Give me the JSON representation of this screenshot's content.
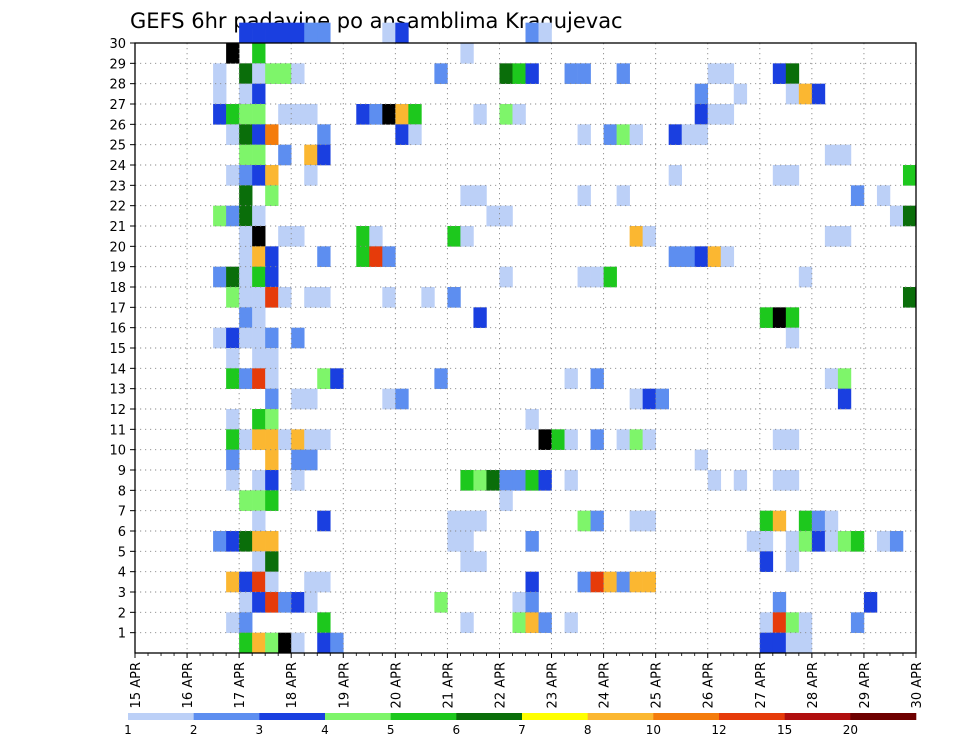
{
  "chart_data": {
    "type": "heatmap",
    "title": "GEFS 6hr padavine po ansamblima Kragujevac",
    "x_start": "15 APR 00Z",
    "x_end": "30 APR 00Z",
    "x_step_hours": 6,
    "x_tick_labels": [
      "15 APR",
      "16 APR",
      "17 APR",
      "18 APR",
      "19 APR",
      "20 APR",
      "21 APR",
      "22 APR",
      "23 APR",
      "24 APR",
      "25 APR",
      "26 APR",
      "27 APR",
      "28 APR",
      "29 APR",
      "30 APR"
    ],
    "y_tick_labels": [
      "1",
      "2",
      "3",
      "4",
      "5",
      "6",
      "7",
      "8",
      "9",
      "10",
      "11",
      "12",
      "13",
      "14",
      "15",
      "16",
      "17",
      "18",
      "19",
      "20",
      "21",
      "22",
      "23",
      "24",
      "25",
      "26",
      "27",
      "28",
      "29",
      "30"
    ],
    "ylim": [
      0,
      30
    ],
    "grid": true,
    "colorbar": {
      "levels": [
        1,
        2,
        3,
        4,
        5,
        6,
        7,
        8,
        10,
        12,
        15,
        20
      ],
      "colors": [
        "#bcd0f7",
        "#5d8ef0",
        "#1a3fe0",
        "#7ef56a",
        "#1dc81d",
        "#0a6e0a",
        "#ffff00",
        "#fbb731",
        "#f47c0c",
        "#e63b0a",
        "#b00e0e",
        "#6e0000"
      ]
    },
    "cells": [
      [
        8,
        30,
        3
      ],
      [
        9,
        30,
        3
      ],
      [
        10,
        30,
        3
      ],
      [
        11,
        30,
        3
      ],
      [
        12,
        30,
        3
      ],
      [
        13,
        30,
        2
      ],
      [
        14,
        30,
        2
      ],
      [
        19,
        30,
        1
      ],
      [
        20,
        30,
        3
      ],
      [
        30,
        30,
        2
      ],
      [
        31,
        30,
        1
      ],
      [
        7,
        29,
        15
      ],
      [
        9,
        29,
        5
      ],
      [
        25,
        29,
        1
      ],
      [
        6,
        28,
        1
      ],
      [
        8,
        28,
        6
      ],
      [
        9,
        28,
        1
      ],
      [
        10,
        28,
        4
      ],
      [
        11,
        28,
        4
      ],
      [
        12,
        28,
        1
      ],
      [
        23,
        28,
        2
      ],
      [
        28,
        28,
        6
      ],
      [
        29,
        28,
        5
      ],
      [
        30,
        28,
        3
      ],
      [
        33,
        28,
        2
      ],
      [
        34,
        28,
        2
      ],
      [
        37,
        28,
        2
      ],
      [
        44,
        28,
        1
      ],
      [
        45,
        28,
        1
      ],
      [
        49,
        28,
        3
      ],
      [
        50,
        28,
        6
      ],
      [
        6,
        27,
        1
      ],
      [
        8,
        27,
        1
      ],
      [
        9,
        27,
        3
      ],
      [
        43,
        27,
        2
      ],
      [
        46,
        27,
        1
      ],
      [
        50,
        27,
        1
      ],
      [
        51,
        27,
        8
      ],
      [
        52,
        27,
        3
      ],
      [
        6,
        26,
        3
      ],
      [
        7,
        26,
        5
      ],
      [
        8,
        26,
        4
      ],
      [
        9,
        26,
        4
      ],
      [
        11,
        26,
        1
      ],
      [
        12,
        26,
        1
      ],
      [
        13,
        26,
        1
      ],
      [
        17,
        26,
        3
      ],
      [
        18,
        26,
        2
      ],
      [
        19,
        26,
        15
      ],
      [
        20,
        26,
        8
      ],
      [
        21,
        26,
        5
      ],
      [
        26,
        26,
        1
      ],
      [
        28,
        26,
        4
      ],
      [
        29,
        26,
        1
      ],
      [
        43,
        26,
        3
      ],
      [
        44,
        26,
        1
      ],
      [
        45,
        26,
        1
      ],
      [
        7,
        25,
        1
      ],
      [
        8,
        25,
        6
      ],
      [
        9,
        25,
        3
      ],
      [
        10,
        25,
        9
      ],
      [
        14,
        25,
        2
      ],
      [
        20,
        25,
        3
      ],
      [
        21,
        25,
        1
      ],
      [
        34,
        25,
        1
      ],
      [
        36,
        25,
        2
      ],
      [
        37,
        25,
        4
      ],
      [
        38,
        25,
        1
      ],
      [
        41,
        25,
        3
      ],
      [
        42,
        25,
        1
      ],
      [
        43,
        25,
        1
      ],
      [
        8,
        24,
        4
      ],
      [
        9,
        24,
        4
      ],
      [
        11,
        24,
        2
      ],
      [
        13,
        24,
        8
      ],
      [
        14,
        24,
        3
      ],
      [
        53,
        24,
        1
      ],
      [
        54,
        24,
        1
      ],
      [
        7,
        23,
        1
      ],
      [
        8,
        23,
        2
      ],
      [
        9,
        23,
        3
      ],
      [
        10,
        23,
        8
      ],
      [
        13,
        23,
        1
      ],
      [
        41,
        23,
        1
      ],
      [
        49,
        23,
        1
      ],
      [
        50,
        23,
        1
      ],
      [
        59,
        23,
        5
      ],
      [
        8,
        22,
        6
      ],
      [
        10,
        22,
        4
      ],
      [
        25,
        22,
        1
      ],
      [
        26,
        22,
        1
      ],
      [
        34,
        22,
        1
      ],
      [
        37,
        22,
        1
      ],
      [
        55,
        22,
        2
      ],
      [
        57,
        22,
        1
      ],
      [
        6,
        21,
        4
      ],
      [
        7,
        21,
        2
      ],
      [
        8,
        21,
        6
      ],
      [
        9,
        21,
        1
      ],
      [
        27,
        21,
        1
      ],
      [
        28,
        21,
        1
      ],
      [
        58,
        21,
        1
      ],
      [
        59,
        21,
        6
      ],
      [
        8,
        20,
        1
      ],
      [
        9,
        20,
        14
      ],
      [
        11,
        20,
        1
      ],
      [
        12,
        20,
        1
      ],
      [
        17,
        20,
        5
      ],
      [
        18,
        20,
        1
      ],
      [
        24,
        20,
        5
      ],
      [
        25,
        20,
        1
      ],
      [
        38,
        20,
        8
      ],
      [
        39,
        20,
        1
      ],
      [
        53,
        20,
        1
      ],
      [
        54,
        20,
        1
      ],
      [
        8,
        19,
        1
      ],
      [
        9,
        19,
        8
      ],
      [
        10,
        19,
        3
      ],
      [
        14,
        19,
        2
      ],
      [
        17,
        19,
        5
      ],
      [
        18,
        19,
        10
      ],
      [
        19,
        19,
        2
      ],
      [
        41,
        19,
        2
      ],
      [
        42,
        19,
        2
      ],
      [
        43,
        19,
        3
      ],
      [
        44,
        19,
        8
      ],
      [
        45,
        19,
        1
      ],
      [
        6,
        18,
        2
      ],
      [
        7,
        18,
        6
      ],
      [
        8,
        18,
        1
      ],
      [
        9,
        18,
        5
      ],
      [
        10,
        18,
        3
      ],
      [
        28,
        18,
        1
      ],
      [
        34,
        18,
        1
      ],
      [
        35,
        18,
        1
      ],
      [
        36,
        18,
        5
      ],
      [
        51,
        18,
        1
      ],
      [
        7,
        17,
        4
      ],
      [
        8,
        17,
        1
      ],
      [
        9,
        17,
        1
      ],
      [
        10,
        17,
        10
      ],
      [
        11,
        17,
        1
      ],
      [
        13,
        17,
        1
      ],
      [
        14,
        17,
        1
      ],
      [
        19,
        17,
        1
      ],
      [
        22,
        17,
        1
      ],
      [
        24,
        17,
        2
      ],
      [
        59,
        17,
        6
      ],
      [
        8,
        16,
        2
      ],
      [
        9,
        16,
        1
      ],
      [
        26,
        16,
        3
      ],
      [
        48,
        16,
        5
      ],
      [
        49,
        16,
        14
      ],
      [
        50,
        16,
        5
      ],
      [
        6,
        15,
        1
      ],
      [
        7,
        15,
        3
      ],
      [
        8,
        15,
        1
      ],
      [
        9,
        15,
        1
      ],
      [
        10,
        15,
        2
      ],
      [
        12,
        15,
        2
      ],
      [
        50,
        15,
        1
      ],
      [
        7,
        14,
        1
      ],
      [
        9,
        14,
        1
      ],
      [
        10,
        14,
        1
      ],
      [
        7,
        13,
        5
      ],
      [
        8,
        13,
        2
      ],
      [
        9,
        13,
        10
      ],
      [
        10,
        13,
        1
      ],
      [
        14,
        13,
        4
      ],
      [
        15,
        13,
        3
      ],
      [
        23,
        13,
        2
      ],
      [
        33,
        13,
        1
      ],
      [
        35,
        13,
        2
      ],
      [
        53,
        13,
        1
      ],
      [
        54,
        13,
        4
      ],
      [
        10,
        12,
        2
      ],
      [
        12,
        12,
        1
      ],
      [
        13,
        12,
        1
      ],
      [
        19,
        12,
        1
      ],
      [
        20,
        12,
        2
      ],
      [
        38,
        12,
        1
      ],
      [
        39,
        12,
        3
      ],
      [
        40,
        12,
        2
      ],
      [
        54,
        12,
        3
      ],
      [
        7,
        11,
        1
      ],
      [
        9,
        11,
        5
      ],
      [
        10,
        11,
        4
      ],
      [
        30,
        11,
        1
      ],
      [
        7,
        10,
        5
      ],
      [
        8,
        10,
        1
      ],
      [
        9,
        10,
        8
      ],
      [
        10,
        10,
        8
      ],
      [
        11,
        10,
        1
      ],
      [
        12,
        10,
        8
      ],
      [
        13,
        10,
        1
      ],
      [
        14,
        10,
        1
      ],
      [
        31,
        10,
        15
      ],
      [
        32,
        10,
        5
      ],
      [
        33,
        10,
        1
      ],
      [
        35,
        10,
        2
      ],
      [
        37,
        10,
        1
      ],
      [
        38,
        10,
        4
      ],
      [
        39,
        10,
        1
      ],
      [
        49,
        10,
        1
      ],
      [
        50,
        10,
        1
      ],
      [
        7,
        9,
        2
      ],
      [
        10,
        9,
        8
      ],
      [
        12,
        9,
        2
      ],
      [
        13,
        9,
        2
      ],
      [
        43,
        9,
        1
      ],
      [
        7,
        8,
        1
      ],
      [
        9,
        8,
        1
      ],
      [
        10,
        8,
        3
      ],
      [
        12,
        8,
        1
      ],
      [
        25,
        8,
        5
      ],
      [
        26,
        8,
        4
      ],
      [
        27,
        8,
        6
      ],
      [
        28,
        8,
        2
      ],
      [
        29,
        8,
        2
      ],
      [
        30,
        8,
        5
      ],
      [
        31,
        8,
        3
      ],
      [
        33,
        8,
        1
      ],
      [
        44,
        8,
        1
      ],
      [
        46,
        8,
        1
      ],
      [
        49,
        8,
        1
      ],
      [
        50,
        8,
        1
      ],
      [
        8,
        7,
        4
      ],
      [
        9,
        7,
        4
      ],
      [
        10,
        7,
        5
      ],
      [
        28,
        7,
        1
      ],
      [
        9,
        6,
        1
      ],
      [
        14,
        6,
        3
      ],
      [
        24,
        6,
        1
      ],
      [
        25,
        6,
        1
      ],
      [
        26,
        6,
        1
      ],
      [
        34,
        6,
        4
      ],
      [
        35,
        6,
        2
      ],
      [
        38,
        6,
        1
      ],
      [
        39,
        6,
        1
      ],
      [
        48,
        6,
        5
      ],
      [
        49,
        6,
        8
      ],
      [
        51,
        6,
        5
      ],
      [
        52,
        6,
        2
      ],
      [
        53,
        6,
        1
      ],
      [
        6,
        5,
        2
      ],
      [
        7,
        5,
        3
      ],
      [
        8,
        5,
        6
      ],
      [
        9,
        5,
        8
      ],
      [
        10,
        5,
        8
      ],
      [
        24,
        5,
        1
      ],
      [
        25,
        5,
        1
      ],
      [
        30,
        5,
        2
      ],
      [
        47,
        5,
        1
      ],
      [
        48,
        5,
        1
      ],
      [
        50,
        5,
        1
      ],
      [
        51,
        5,
        4
      ],
      [
        52,
        5,
        3
      ],
      [
        53,
        5,
        1
      ],
      [
        54,
        5,
        4
      ],
      [
        55,
        5,
        5
      ],
      [
        57,
        5,
        1
      ],
      [
        58,
        5,
        2
      ],
      [
        9,
        4,
        1
      ],
      [
        10,
        4,
        6
      ],
      [
        25,
        4,
        1
      ],
      [
        26,
        4,
        1
      ],
      [
        48,
        4,
        3
      ],
      [
        50,
        4,
        1
      ],
      [
        7,
        3,
        8
      ],
      [
        8,
        3,
        3
      ],
      [
        9,
        3,
        10
      ],
      [
        10,
        3,
        1
      ],
      [
        13,
        3,
        1
      ],
      [
        14,
        3,
        1
      ],
      [
        30,
        3,
        3
      ],
      [
        34,
        3,
        2
      ],
      [
        35,
        3,
        10
      ],
      [
        36,
        3,
        8
      ],
      [
        37,
        3,
        2
      ],
      [
        38,
        3,
        8
      ],
      [
        39,
        3,
        8
      ],
      [
        8,
        2,
        1
      ],
      [
        9,
        2,
        3
      ],
      [
        10,
        2,
        10
      ],
      [
        11,
        2,
        2
      ],
      [
        12,
        2,
        3
      ],
      [
        13,
        2,
        1
      ],
      [
        23,
        2,
        4
      ],
      [
        29,
        2,
        1
      ],
      [
        30,
        2,
        2
      ],
      [
        49,
        2,
        2
      ],
      [
        56,
        2,
        3
      ],
      [
        7,
        1,
        1
      ],
      [
        8,
        1,
        2
      ],
      [
        14,
        1,
        5
      ],
      [
        25,
        1,
        1
      ],
      [
        29,
        1,
        4
      ],
      [
        30,
        1,
        8
      ],
      [
        31,
        1,
        2
      ],
      [
        33,
        1,
        1
      ],
      [
        48,
        1,
        1
      ],
      [
        49,
        1,
        10
      ],
      [
        50,
        1,
        4
      ],
      [
        51,
        1,
        1
      ],
      [
        55,
        1,
        2
      ],
      [
        8,
        0,
        5
      ],
      [
        9,
        0,
        8
      ],
      [
        10,
        0,
        4
      ],
      [
        11,
        0,
        20
      ],
      [
        12,
        0,
        1
      ],
      [
        14,
        0,
        3
      ],
      [
        15,
        0,
        2
      ],
      [
        48,
        0,
        3
      ],
      [
        49,
        0,
        3
      ],
      [
        50,
        0,
        1
      ],
      [
        51,
        0,
        1
      ]
    ]
  }
}
